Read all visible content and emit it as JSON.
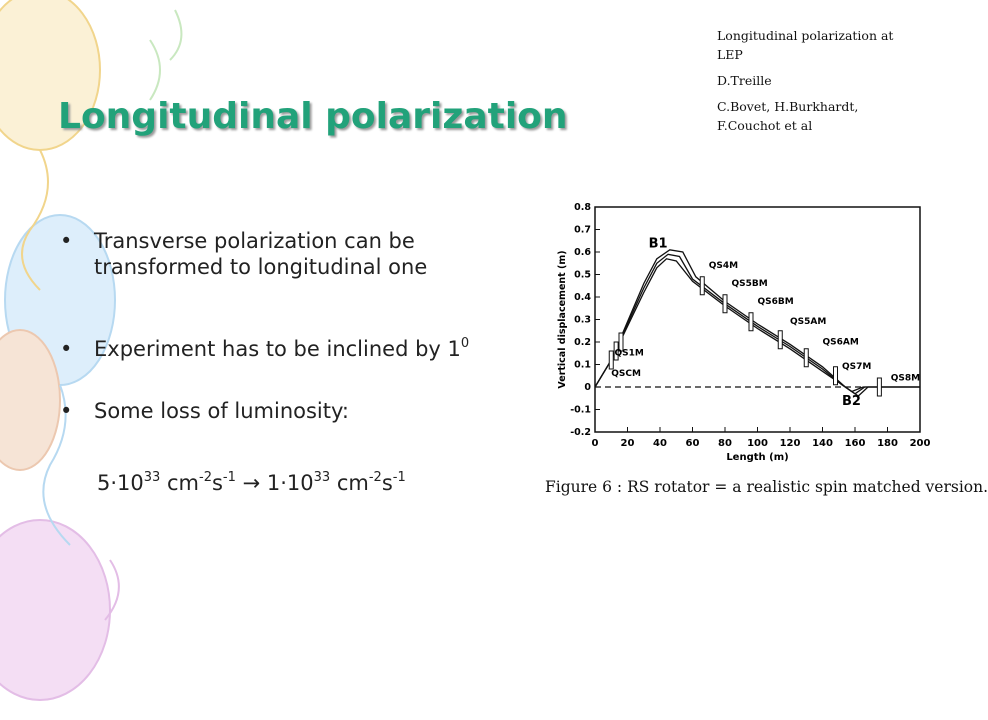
{
  "slide": {
    "title": "Longitudinal polarization",
    "references": [
      "Longitudinal polarization at LEP",
      "D.Treille",
      "C.Bovet, H.Burkhardt, F.Couchot et al"
    ],
    "bullets": [
      "Transverse polarization can be transformed to longitudinal one",
      "Experiment has to be inclined by 1",
      "Some loss of luminosity:"
    ],
    "bullet2_sup": "0",
    "formula": {
      "lhs_coeff": "5·10",
      "lhs_exp": "33",
      "unit_cm": " cm",
      "cm_exp": "-2",
      "unit_s": "s",
      "s_exp": "-1",
      "arrow": " → ",
      "rhs_coeff": "1·10",
      "rhs_exp": "33"
    }
  },
  "chart_data": {
    "type": "line",
    "xlabel": "Length (m)",
    "ylabel": "Vertical displacement (m)",
    "xlim": [
      0,
      200
    ],
    "ylim": [
      -0.2,
      0.8
    ],
    "x_ticks": [
      0,
      20,
      40,
      60,
      80,
      100,
      120,
      140,
      160,
      180,
      200
    ],
    "y_ticks": [
      "0.8",
      "0.7",
      "0.6",
      "0.5",
      "0.4",
      "0.3",
      "0.2",
      "0.1",
      "0",
      "-0.1",
      "-0.2"
    ],
    "series": [
      {
        "x": [
          0,
          10,
          20,
          30,
          38,
          44,
          50,
          60,
          80,
          100,
          120,
          140,
          150,
          158,
          165,
          200
        ],
        "y": [
          0.0,
          0.12,
          0.27,
          0.42,
          0.53,
          0.57,
          0.56,
          0.47,
          0.36,
          0.26,
          0.17,
          0.07,
          0.02,
          -0.02,
          0.0,
          0.0
        ]
      },
      {
        "x": [
          0,
          10,
          20,
          30,
          38,
          45,
          52,
          60,
          80,
          100,
          120,
          140,
          152,
          160,
          166,
          200
        ],
        "y": [
          0.0,
          0.12,
          0.28,
          0.44,
          0.55,
          0.59,
          0.58,
          0.48,
          0.37,
          0.27,
          0.18,
          0.08,
          0.01,
          -0.03,
          0.0,
          0.0
        ]
      },
      {
        "x": [
          0,
          10,
          20,
          30,
          38,
          46,
          54,
          62,
          80,
          100,
          120,
          140,
          154,
          162,
          168,
          200
        ],
        "y": [
          0.0,
          0.12,
          0.29,
          0.46,
          0.57,
          0.61,
          0.6,
          0.49,
          0.38,
          0.28,
          0.19,
          0.09,
          0.0,
          -0.04,
          0.0,
          0.0
        ]
      }
    ],
    "baseline": {
      "x": [
        0,
        165
      ],
      "y": [
        0,
        0
      ],
      "style": "dashed"
    },
    "annotations": [
      {
        "text": "B1",
        "x": 33,
        "y": 0.62
      },
      {
        "text": "QS4M",
        "x": 70,
        "y": 0.53
      },
      {
        "text": "QS5BM",
        "x": 84,
        "y": 0.45
      },
      {
        "text": "QS6BM",
        "x": 100,
        "y": 0.37
      },
      {
        "text": "QS5AM",
        "x": 120,
        "y": 0.28
      },
      {
        "text": "QS6AM",
        "x": 140,
        "y": 0.19
      },
      {
        "text": "QS7M",
        "x": 152,
        "y": 0.08
      },
      {
        "text": "QS8M",
        "x": 182,
        "y": 0.03
      },
      {
        "text": "QS1M",
        "x": 12,
        "y": 0.14
      },
      {
        "text": "QSCM",
        "x": 10,
        "y": 0.05
      },
      {
        "text": "B2",
        "x": 152,
        "y": -0.08
      }
    ],
    "magnets": [
      {
        "x": 10,
        "y": 0.12
      },
      {
        "x": 13,
        "y": 0.16
      },
      {
        "x": 16,
        "y": 0.2
      },
      {
        "x": 66,
        "y": 0.45
      },
      {
        "x": 80,
        "y": 0.37
      },
      {
        "x": 96,
        "y": 0.29
      },
      {
        "x": 114,
        "y": 0.21
      },
      {
        "x": 130,
        "y": 0.13
      },
      {
        "x": 148,
        "y": 0.05
      },
      {
        "x": 175,
        "y": 0.0
      }
    ],
    "caption": "Figure 6 : RS rotator = a realistic spin matched version."
  }
}
